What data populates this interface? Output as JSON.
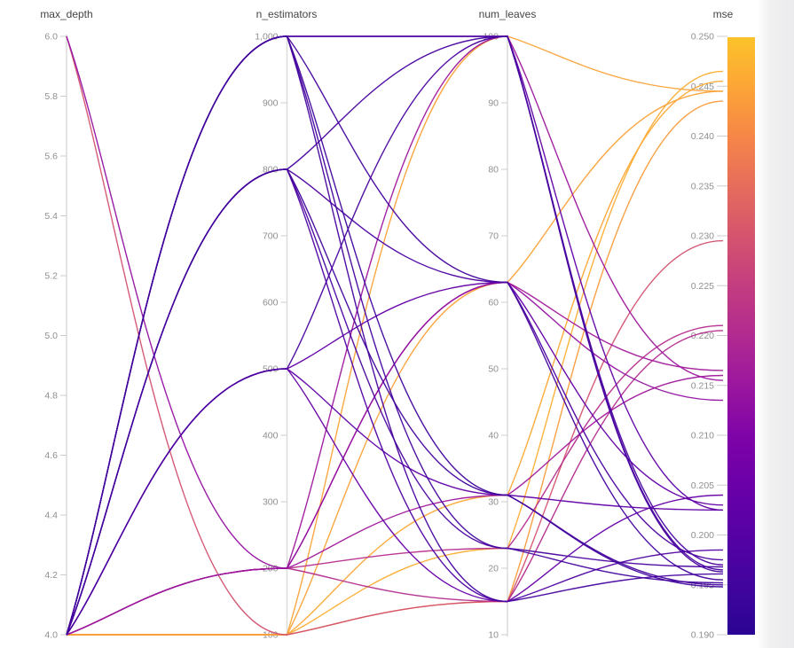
{
  "page": {
    "background": "#ffffff",
    "panel_edge_color": "#ebebed"
  },
  "chart_data": {
    "type": "parallel_coordinates",
    "title": "",
    "legend_position": "right-colorbar",
    "grid": false,
    "axes": [
      {
        "label": "max_depth",
        "min": 4.0,
        "max": 6.0,
        "tick_labels": [
          "4.0",
          "4.2",
          "4.4",
          "4.6",
          "4.8",
          "5.0",
          "5.2",
          "5.4",
          "5.6",
          "5.8",
          "6.0"
        ],
        "tick_values": [
          4.0,
          4.2,
          4.4,
          4.6,
          4.8,
          5.0,
          5.2,
          5.4,
          5.6,
          5.8,
          6.0
        ]
      },
      {
        "label": "n_estimators",
        "min": 100,
        "max": 1000,
        "tick_labels": [
          "100",
          "200",
          "300",
          "400",
          "500",
          "600",
          "700",
          "800",
          "900",
          "1,000"
        ],
        "tick_values": [
          100,
          200,
          300,
          400,
          500,
          600,
          700,
          800,
          900,
          1000
        ]
      },
      {
        "label": "num_leaves",
        "min": 10,
        "max": 100,
        "tick_labels": [
          "10",
          "20",
          "30",
          "40",
          "50",
          "60",
          "70",
          "80",
          "90",
          "100"
        ],
        "tick_values": [
          10,
          20,
          30,
          40,
          50,
          60,
          70,
          80,
          90,
          100
        ]
      },
      {
        "label": "mse",
        "min": 0.19,
        "max": 0.25,
        "tick_labels": [
          "0.190",
          "0.195",
          "0.200",
          "0.205",
          "0.210",
          "0.215",
          "0.220",
          "0.225",
          "0.230",
          "0.235",
          "0.240",
          "0.245",
          "0.250"
        ],
        "tick_values": [
          0.19,
          0.195,
          0.2,
          0.205,
          0.21,
          0.215,
          0.22,
          0.225,
          0.23,
          0.235,
          0.24,
          0.245,
          0.25
        ]
      }
    ],
    "colorbar": {
      "label": "mse",
      "min": 0.19,
      "max": 0.25,
      "colormap": "plasma",
      "stops": [
        [
          0.0,
          "#2a0593"
        ],
        [
          0.08,
          "#41049d"
        ],
        [
          0.17,
          "#5601a4"
        ],
        [
          0.25,
          "#6a00a8"
        ],
        [
          0.33,
          "#7e03a8"
        ],
        [
          0.42,
          "#9c179e"
        ],
        [
          0.5,
          "#b12a90"
        ],
        [
          0.58,
          "#c23c81"
        ],
        [
          0.67,
          "#d6556d"
        ],
        [
          0.75,
          "#e66c5c"
        ],
        [
          0.83,
          "#f58548"
        ],
        [
          0.92,
          "#fca636"
        ],
        [
          1.0,
          "#fcc32a"
        ]
      ]
    },
    "runs": {
      "columns": [
        "max_depth",
        "n_estimators",
        "num_leaves",
        "mse"
      ],
      "rows": [
        [
          4,
          1000,
          100,
          0.1965
        ],
        [
          4,
          1000,
          100,
          0.2025
        ],
        [
          4,
          1000,
          63,
          0.1955
        ],
        [
          4,
          1000,
          31,
          0.1948
        ],
        [
          4,
          1000,
          23,
          0.1952
        ],
        [
          4,
          1000,
          15,
          0.1961
        ],
        [
          4,
          800,
          100,
          0.1963
        ],
        [
          4,
          800,
          63,
          0.1975
        ],
        [
          4,
          800,
          31,
          0.195
        ],
        [
          4,
          800,
          23,
          0.1968
        ],
        [
          4,
          800,
          15,
          0.1985
        ],
        [
          4,
          500,
          100,
          0.197
        ],
        [
          4,
          500,
          63,
          0.203
        ],
        [
          4,
          500,
          31,
          0.2025
        ],
        [
          4,
          500,
          15,
          0.204
        ],
        [
          4,
          200,
          100,
          0.2155
        ],
        [
          4,
          200,
          63,
          0.2165
        ],
        [
          4,
          200,
          31,
          0.216
        ],
        [
          4,
          200,
          23,
          0.221
        ],
        [
          4,
          200,
          15,
          0.2205
        ],
        [
          6,
          200,
          63,
          0.2135
        ],
        [
          4,
          100,
          100,
          0.2445
        ],
        [
          4,
          100,
          63,
          0.2445
        ],
        [
          4,
          100,
          31,
          0.2455
        ],
        [
          4,
          100,
          23,
          0.2465
        ],
        [
          4,
          100,
          15,
          0.2435
        ],
        [
          6,
          100,
          15,
          0.2295
        ]
      ]
    }
  }
}
